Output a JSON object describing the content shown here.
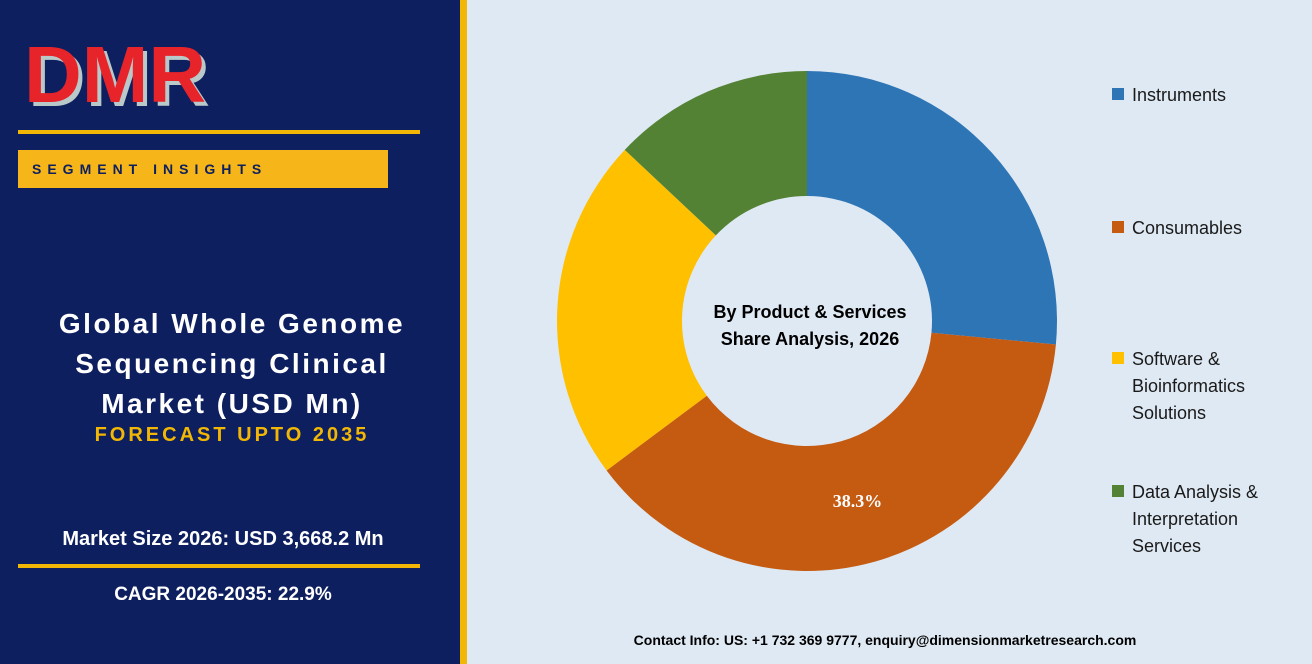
{
  "logo": {
    "text": "DMR",
    "colors": {
      "main": "#e8242b",
      "shade": "#b9c9c9"
    }
  },
  "badge": {
    "label": "SEGMENT INSIGHTS"
  },
  "report": {
    "title_lines": [
      "Global Whole Genome",
      "Sequencing Clinical",
      "Market (USD Mn)"
    ],
    "subtitle": "FORECAST UPTO 2035",
    "market_size": "Market Size 2026: USD 3,668.2 Mn",
    "cagr": "CAGR 2026-2035: 22.9%"
  },
  "chart_data": {
    "type": "pie",
    "donut": true,
    "center_title": [
      "By Product & Services",
      "Share Analysis, 2026"
    ],
    "legend_position": "right",
    "series": [
      {
        "name": "Instruments",
        "value": 26.5,
        "color": "#2e75b6"
      },
      {
        "name": "Consumables",
        "value": 38.3,
        "color": "#c55a11",
        "label": "38.3%"
      },
      {
        "name": "Software & Bioinformatics Solutions",
        "value": 22.2,
        "color": "#ffc000"
      },
      {
        "name": "Data Analysis & Interpretation Services",
        "value": 13.0,
        "color": "#548235"
      }
    ]
  },
  "legend": {
    "items": [
      {
        "lines": [
          "Instruments"
        ],
        "color": "#2e75b6"
      },
      {
        "lines": [
          "Consumables"
        ],
        "color": "#c55a11"
      },
      {
        "lines": [
          "Software &",
          "Bioinformatics",
          "Solutions"
        ],
        "color": "#ffc000"
      },
      {
        "lines": [
          "Data Analysis &",
          "Interpretation",
          "Services"
        ],
        "color": "#548235"
      }
    ]
  },
  "footer": {
    "contact": "Contact Info: US: +1 732 369 9777, enquiry@dimensionmarketresearch.com"
  },
  "colors": {
    "panel": "#0d1f5e",
    "accent": "#f2b705",
    "background": "#dfe9f3"
  }
}
